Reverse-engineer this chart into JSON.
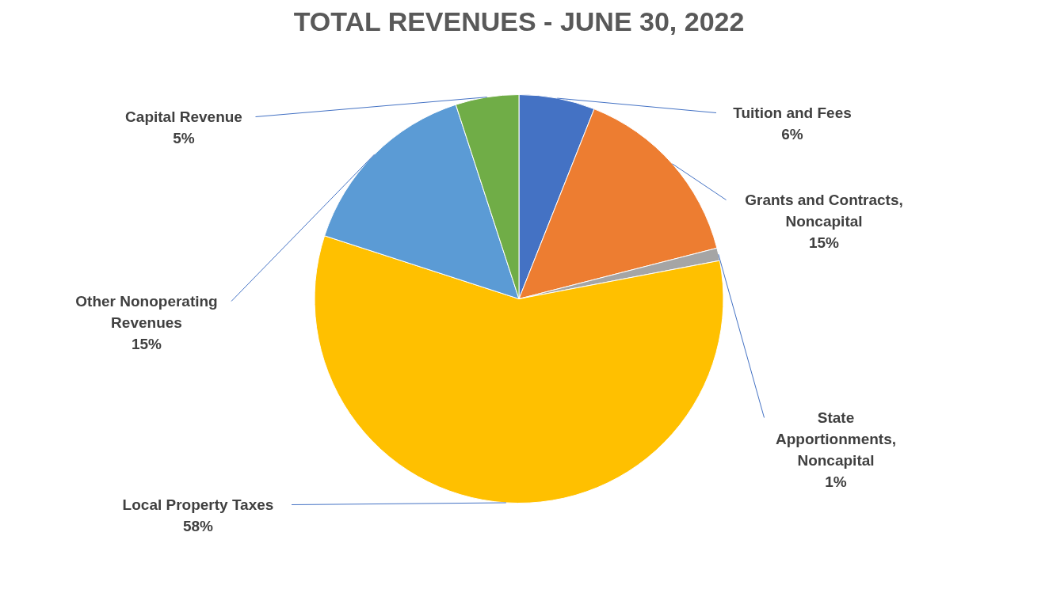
{
  "chart_data": {
    "type": "pie",
    "title": "TOTAL REVENUES - JUNE 30, 2022",
    "categories": [
      "Tuition and Fees",
      "Grants and Contracts, Noncapital",
      "State Apportionments, Noncapital",
      "Local Property Taxes",
      "Other Nonoperating Revenues",
      "Capital Revenue"
    ],
    "values": [
      6,
      15,
      1,
      58,
      15,
      5
    ],
    "value_labels": [
      "6%",
      "15%",
      "1%",
      "58%",
      "15%",
      "5%"
    ],
    "colors": [
      "#4472c4",
      "#ed7d31",
      "#a5a5a5",
      "#ffc000",
      "#5b9bd5",
      "#70ad47"
    ],
    "legend": false
  }
}
